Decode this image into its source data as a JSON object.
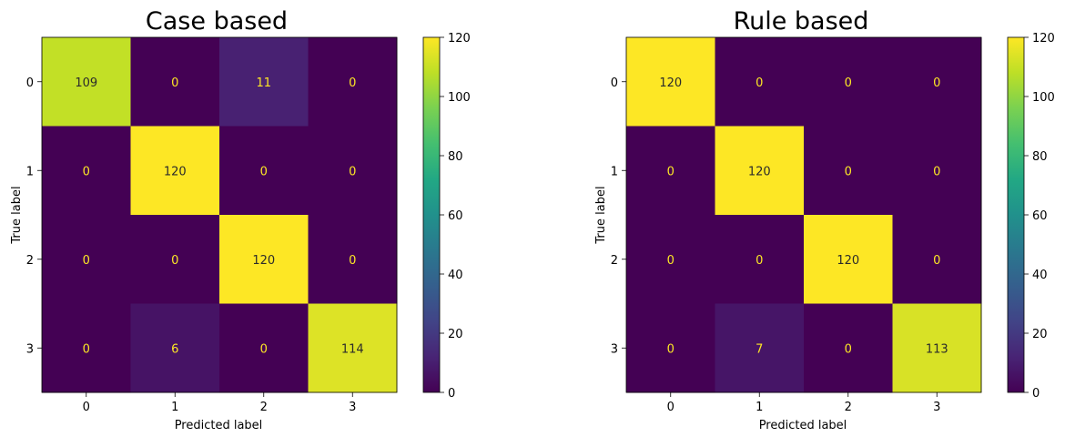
{
  "chart_data": [
    {
      "type": "heatmap",
      "title": "Case based",
      "xlabel": "Predicted label",
      "ylabel": "True label",
      "x_categories": [
        "0",
        "1",
        "2",
        "3"
      ],
      "y_categories": [
        "0",
        "1",
        "2",
        "3"
      ],
      "values": [
        [
          109,
          0,
          11,
          0
        ],
        [
          0,
          120,
          0,
          0
        ],
        [
          0,
          0,
          120,
          0
        ],
        [
          0,
          6,
          0,
          114
        ]
      ],
      "colormap": "viridis",
      "color_range": [
        0,
        120
      ],
      "colorbar_ticks": [
        "0",
        "20",
        "40",
        "60",
        "80",
        "100",
        "120"
      ]
    },
    {
      "type": "heatmap",
      "title": "Rule based",
      "xlabel": "Predicted label",
      "ylabel": "True label",
      "x_categories": [
        "0",
        "1",
        "2",
        "3"
      ],
      "y_categories": [
        "0",
        "1",
        "2",
        "3"
      ],
      "values": [
        [
          120,
          0,
          0,
          0
        ],
        [
          0,
          120,
          0,
          0
        ],
        [
          0,
          0,
          120,
          0
        ],
        [
          0,
          7,
          0,
          113
        ]
      ],
      "colormap": "viridis",
      "color_range": [
        0,
        120
      ],
      "colorbar_ticks": [
        "0",
        "20",
        "40",
        "60",
        "80",
        "100",
        "120"
      ]
    }
  ]
}
